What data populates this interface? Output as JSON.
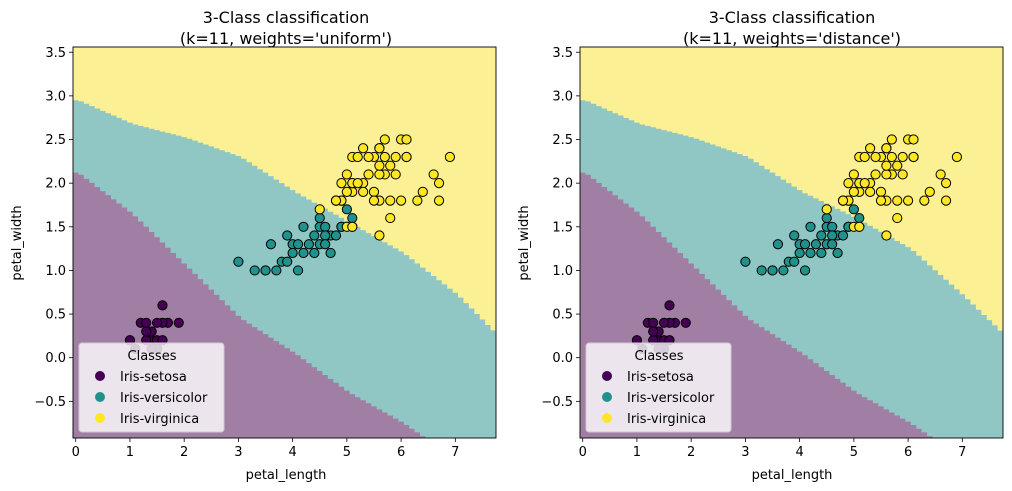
{
  "chart_data": [
    {
      "type": "scatter",
      "title": "3-Class classification",
      "subtitle": "(k=11, weights='uniform')",
      "xlabel": "petal_length",
      "ylabel": "petal_width",
      "xlim": [
        -0.05,
        7.75
      ],
      "ylim": [
        -0.92,
        3.56
      ],
      "xticks": [
        0,
        1,
        2,
        3,
        4,
        5,
        6,
        7
      ],
      "yticks": [
        -0.5,
        0.0,
        0.5,
        1.0,
        1.5,
        2.0,
        2.5,
        3.0,
        3.5
      ],
      "grid": false,
      "legend_position": "bottom-left",
      "decision_regions": {
        "colors": [
          "#a17fa5",
          "#90c7c4",
          "#fbf093"
        ],
        "boundary_setosa_versicolor": [
          [
            0,
            2.12
          ],
          [
            1,
            1.65
          ],
          [
            2,
            1.05
          ],
          [
            3,
            0.45
          ],
          [
            4,
            0.05
          ],
          [
            5,
            -0.4
          ],
          [
            6,
            -0.75
          ],
          [
            6.4,
            -0.92
          ]
        ],
        "boundary_versicolor_virginica": [
          [
            0,
            2.95
          ],
          [
            1,
            2.68
          ],
          [
            2,
            2.52
          ],
          [
            3,
            2.3
          ],
          [
            4,
            1.9
          ],
          [
            5,
            1.55
          ],
          [
            6,
            1.2
          ],
          [
            7,
            0.72
          ],
          [
            7.75,
            0.25
          ]
        ]
      },
      "series": [
        {
          "name": "Iris-setosa",
          "color": "#440154",
          "x": [
            1.4,
            1.3,
            1.5,
            1.7,
            1.6,
            1.2,
            1.1,
            1.9,
            1.4,
            1.5,
            1.3,
            1.6,
            1.4,
            1.5,
            1.6,
            1.3,
            1.0
          ],
          "y": [
            0.2,
            0.2,
            0.2,
            0.4,
            0.6,
            0.4,
            0.1,
            0.4,
            0.3,
            0.1,
            0.3,
            0.4,
            0.1,
            0.4,
            0.2,
            0.4,
            0.2
          ]
        },
        {
          "name": "Iris-versicolor",
          "color": "#21918c",
          "x": [
            4.7,
            4.5,
            4.9,
            4.0,
            4.6,
            3.3,
            3.9,
            3.5,
            4.2,
            3.6,
            4.4,
            4.1,
            3.0,
            4.8,
            4.3,
            5.0,
            4.5,
            4.7,
            3.8,
            3.7,
            5.1,
            4.0,
            4.9,
            4.4,
            4.2,
            4.6,
            3.9,
            4.1,
            4.5,
            4.8,
            4.6,
            3.5,
            5.1
          ],
          "y": [
            1.4,
            1.5,
            1.5,
            1.3,
            1.5,
            1.0,
            1.4,
            1.0,
            1.5,
            1.3,
            1.4,
            1.0,
            1.1,
            1.8,
            1.3,
            1.7,
            1.6,
            1.2,
            1.1,
            1.0,
            1.6,
            1.2,
            1.5,
            1.2,
            1.2,
            1.4,
            1.1,
            1.3,
            1.3,
            1.4,
            1.3,
            1.0,
            1.5
          ]
        },
        {
          "name": "Iris-virginica",
          "color": "#fde725",
          "x": [
            6.0,
            5.1,
            5.9,
            5.6,
            5.8,
            6.6,
            4.5,
            6.3,
            5.8,
            6.1,
            5.3,
            5.5,
            5.0,
            5.1,
            5.3,
            5.5,
            6.7,
            6.9,
            5.0,
            5.7,
            4.9,
            6.7,
            4.9,
            5.7,
            6.0,
            4.8,
            4.9,
            5.6,
            5.8,
            6.4,
            5.6,
            5.1,
            5.6,
            6.1,
            5.6,
            5.5,
            4.8,
            5.4,
            5.6,
            5.1,
            5.2,
            5.4,
            5.9,
            5.0,
            5.1,
            5.7,
            5.2,
            5.3,
            6.1
          ],
          "y": [
            2.5,
            1.9,
            2.1,
            1.8,
            2.2,
            2.1,
            1.7,
            1.8,
            1.8,
            2.5,
            2.0,
            1.9,
            2.1,
            2.0,
            2.4,
            2.3,
            1.8,
            2.3,
            1.5,
            2.3,
            2.0,
            2.0,
            1.8,
            2.1,
            1.8,
            1.8,
            1.8,
            2.1,
            1.6,
            1.9,
            2.2,
            1.5,
            1.4,
            2.3,
            2.4,
            1.8,
            1.8,
            2.1,
            2.4,
            2.3,
            2.3,
            2.3,
            2.3,
            1.9,
            2.0,
            2.5,
            2.0,
            1.9,
            2.3
          ]
        }
      ]
    },
    {
      "type": "scatter",
      "title": "3-Class classification",
      "subtitle": "(k=11, weights='distance')",
      "xlabel": "petal_length",
      "ylabel": "petal_width",
      "xlim": [
        -0.05,
        7.75
      ],
      "ylim": [
        -0.92,
        3.56
      ],
      "xticks": [
        0,
        1,
        2,
        3,
        4,
        5,
        6,
        7
      ],
      "yticks": [
        -0.5,
        0.0,
        0.5,
        1.0,
        1.5,
        2.0,
        2.5,
        3.0,
        3.5
      ],
      "grid": false,
      "legend_position": "bottom-left",
      "decision_regions": {
        "colors": [
          "#a17fa5",
          "#90c7c4",
          "#fbf093"
        ],
        "boundary_setosa_versicolor": [
          [
            0,
            2.12
          ],
          [
            1,
            1.65
          ],
          [
            2,
            1.05
          ],
          [
            3,
            0.45
          ],
          [
            4,
            0.05
          ],
          [
            5,
            -0.4
          ],
          [
            6,
            -0.75
          ],
          [
            6.4,
            -0.92
          ]
        ],
        "boundary_versicolor_virginica": [
          [
            0,
            2.95
          ],
          [
            1,
            2.68
          ],
          [
            2,
            2.52
          ],
          [
            3,
            2.3
          ],
          [
            4,
            1.9
          ],
          [
            5,
            1.6
          ],
          [
            6,
            1.25
          ],
          [
            7,
            0.7
          ],
          [
            7.75,
            0.25
          ]
        ]
      },
      "series": [
        {
          "name": "Iris-setosa",
          "color": "#440154",
          "x": [
            1.4,
            1.3,
            1.5,
            1.7,
            1.6,
            1.2,
            1.1,
            1.9,
            1.4,
            1.5,
            1.3,
            1.6,
            1.4,
            1.5,
            1.6,
            1.3,
            1.0
          ],
          "y": [
            0.2,
            0.2,
            0.2,
            0.4,
            0.6,
            0.4,
            0.1,
            0.4,
            0.3,
            0.1,
            0.3,
            0.4,
            0.1,
            0.4,
            0.2,
            0.4,
            0.2
          ]
        },
        {
          "name": "Iris-versicolor",
          "color": "#21918c",
          "x": [
            4.7,
            4.5,
            4.9,
            4.0,
            4.6,
            3.3,
            3.9,
            3.5,
            4.2,
            3.6,
            4.4,
            4.1,
            3.0,
            4.8,
            4.3,
            5.0,
            4.5,
            4.7,
            3.8,
            3.7,
            5.1,
            4.0,
            4.9,
            4.4,
            4.2,
            4.6,
            3.9,
            4.1,
            4.5,
            4.8,
            4.6,
            3.5,
            5.1
          ],
          "y": [
            1.4,
            1.5,
            1.5,
            1.3,
            1.5,
            1.0,
            1.4,
            1.0,
            1.5,
            1.3,
            1.4,
            1.0,
            1.1,
            1.8,
            1.3,
            1.7,
            1.6,
            1.2,
            1.1,
            1.0,
            1.6,
            1.2,
            1.5,
            1.2,
            1.2,
            1.4,
            1.1,
            1.3,
            1.3,
            1.4,
            1.3,
            1.0,
            1.5
          ]
        },
        {
          "name": "Iris-virginica",
          "color": "#fde725",
          "x": [
            6.0,
            5.1,
            5.9,
            5.6,
            5.8,
            6.6,
            4.5,
            6.3,
            5.8,
            6.1,
            5.3,
            5.5,
            5.0,
            5.1,
            5.3,
            5.5,
            6.7,
            6.9,
            5.0,
            5.7,
            4.9,
            6.7,
            4.9,
            5.7,
            6.0,
            4.8,
            4.9,
            5.6,
            5.8,
            6.4,
            5.6,
            5.1,
            5.6,
            6.1,
            5.6,
            5.5,
            4.8,
            5.4,
            5.6,
            5.1,
            5.2,
            5.4,
            5.9,
            5.0,
            5.1,
            5.7,
            5.2,
            5.3,
            6.1
          ],
          "y": [
            2.5,
            1.9,
            2.1,
            1.8,
            2.2,
            2.1,
            1.7,
            1.8,
            1.8,
            2.5,
            2.0,
            1.9,
            2.1,
            2.0,
            2.4,
            2.3,
            1.8,
            2.3,
            1.5,
            2.3,
            2.0,
            2.0,
            1.8,
            2.1,
            1.8,
            1.8,
            1.8,
            2.1,
            1.6,
            1.9,
            2.2,
            1.5,
            1.4,
            2.3,
            2.4,
            1.8,
            1.8,
            2.1,
            2.4,
            2.3,
            2.3,
            2.3,
            2.3,
            1.9,
            2.0,
            2.5,
            2.0,
            1.9,
            2.3
          ]
        }
      ],
      "legend": {
        "title": "Classes",
        "entries": [
          "Iris-setosa",
          "Iris-versicolor",
          "Iris-virginica"
        ]
      }
    }
  ],
  "legend": {
    "title": "Classes",
    "entries": [
      "Iris-setosa",
      "Iris-versicolor",
      "Iris-virginica"
    ]
  }
}
